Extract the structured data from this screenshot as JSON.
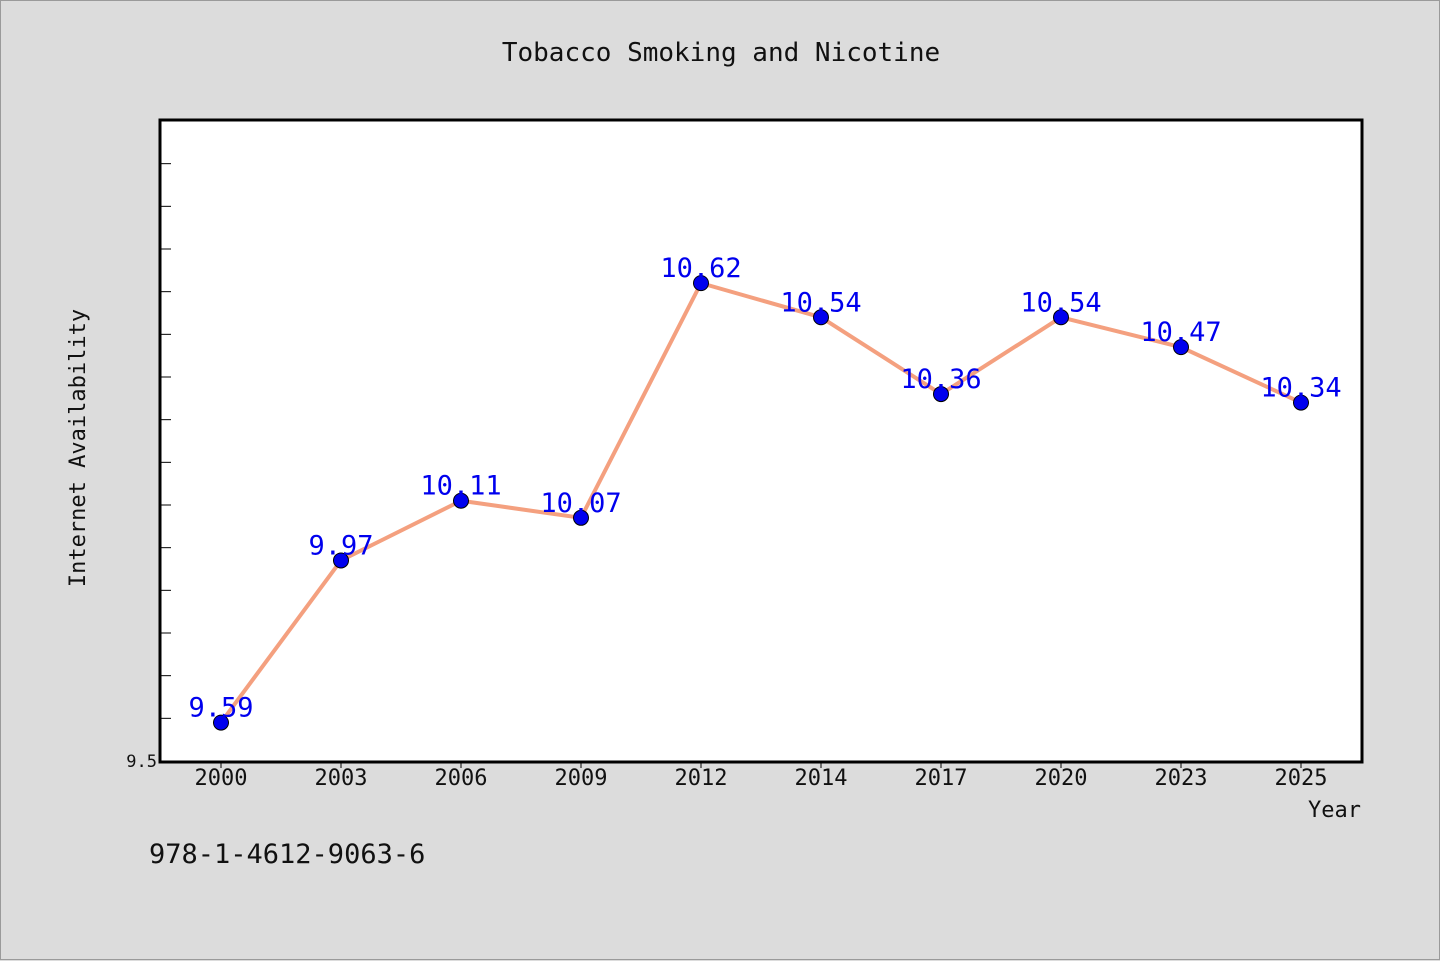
{
  "chart_data": {
    "type": "line",
    "title": "Tobacco Smoking and Nicotine",
    "xlabel": "Year",
    "ylabel": "Internet Availability",
    "categories": [
      "2000",
      "2003",
      "2006",
      "2009",
      "2012",
      "2014",
      "2017",
      "2020",
      "2023",
      "2025"
    ],
    "series": [
      {
        "values": [
          9.59,
          9.97,
          10.11,
          10.07,
          10.62,
          10.54,
          10.36,
          10.54,
          10.47,
          10.34
        ],
        "line_color": "#f4a07f",
        "marker_color": "#0000ee"
      }
    ],
    "data_labels": [
      "9.59",
      "9.97",
      "10.11",
      "10.07",
      "10.62",
      "10.54",
      "10.36",
      "10.54",
      "10.47",
      "10.34"
    ],
    "y_tick_labels": [
      "9.5"
    ],
    "ylim": [
      9.5,
      11.0
    ],
    "grid": false,
    "label_color": "#0000ee"
  },
  "footer": {
    "isbn": "978-1-4612-9063-6"
  }
}
